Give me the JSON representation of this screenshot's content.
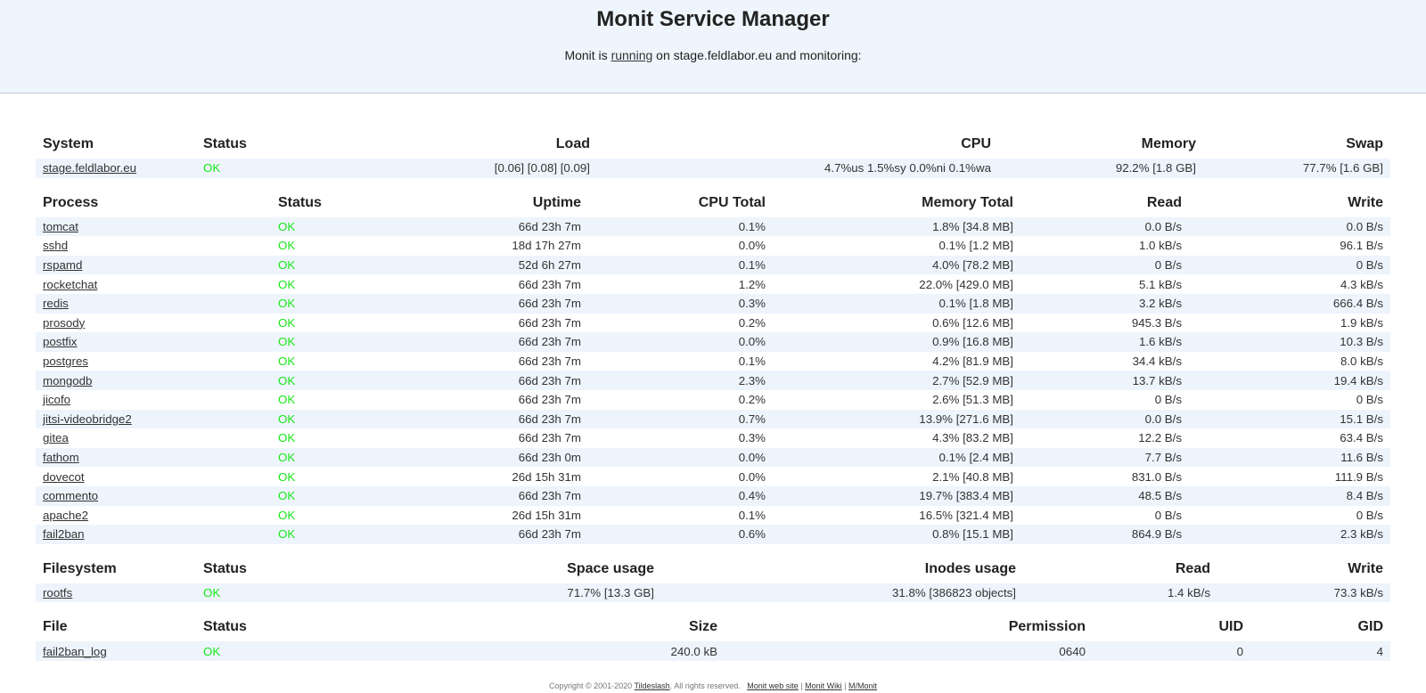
{
  "header": {
    "title": "Monit Service Manager",
    "subtitle_prefix": "Monit is",
    "running_link": "running",
    "subtitle_suffix": "on stage.feldlabor.eu and monitoring:"
  },
  "system": {
    "headers": [
      "System",
      "Status",
      "Load",
      "CPU",
      "Memory",
      "Swap"
    ],
    "rows": [
      {
        "name": "stage.feldlabor.eu",
        "status": "OK",
        "load": "[0.06] [0.08] [0.09]",
        "cpu": "4.7%us 1.5%sy 0.0%ni 0.1%wa",
        "memory": "92.2% [1.8 GB]",
        "swap": "77.7% [1.6 GB]"
      }
    ]
  },
  "process": {
    "headers": [
      "Process",
      "Status",
      "Uptime",
      "CPU Total",
      "Memory Total",
      "Read",
      "Write"
    ],
    "rows": [
      {
        "name": "tomcat",
        "status": "OK",
        "uptime": "66d 23h 7m",
        "cpu": "0.1%",
        "memory": "1.8% [34.8 MB]",
        "read": "0.0 B/s",
        "write": "0.0 B/s"
      },
      {
        "name": "sshd",
        "status": "OK",
        "uptime": "18d 17h 27m",
        "cpu": "0.0%",
        "memory": "0.1% [1.2 MB]",
        "read": "1.0 kB/s",
        "write": "96.1 B/s"
      },
      {
        "name": "rspamd",
        "status": "OK",
        "uptime": "52d 6h 27m",
        "cpu": "0.1%",
        "memory": "4.0% [78.2 MB]",
        "read": "0 B/s",
        "write": "0 B/s"
      },
      {
        "name": "rocketchat",
        "status": "OK",
        "uptime": "66d 23h 7m",
        "cpu": "1.2%",
        "memory": "22.0% [429.0 MB]",
        "read": "5.1 kB/s",
        "write": "4.3 kB/s"
      },
      {
        "name": "redis",
        "status": "OK",
        "uptime": "66d 23h 7m",
        "cpu": "0.3%",
        "memory": "0.1% [1.8 MB]",
        "read": "3.2 kB/s",
        "write": "666.4 B/s"
      },
      {
        "name": "prosody",
        "status": "OK",
        "uptime": "66d 23h 7m",
        "cpu": "0.2%",
        "memory": "0.6% [12.6 MB]",
        "read": "945.3 B/s",
        "write": "1.9 kB/s"
      },
      {
        "name": "postfix",
        "status": "OK",
        "uptime": "66d 23h 7m",
        "cpu": "0.0%",
        "memory": "0.9% [16.8 MB]",
        "read": "1.6 kB/s",
        "write": "10.3 B/s"
      },
      {
        "name": "postgres",
        "status": "OK",
        "uptime": "66d 23h 7m",
        "cpu": "0.1%",
        "memory": "4.2% [81.9 MB]",
        "read": "34.4 kB/s",
        "write": "8.0 kB/s"
      },
      {
        "name": "mongodb",
        "status": "OK",
        "uptime": "66d 23h 7m",
        "cpu": "2.3%",
        "memory": "2.7% [52.9 MB]",
        "read": "13.7 kB/s",
        "write": "19.4 kB/s"
      },
      {
        "name": "jicofo",
        "status": "OK",
        "uptime": "66d 23h 7m",
        "cpu": "0.2%",
        "memory": "2.6% [51.3 MB]",
        "read": "0 B/s",
        "write": "0 B/s"
      },
      {
        "name": "jitsi-videobridge2",
        "status": "OK",
        "uptime": "66d 23h 7m",
        "cpu": "0.7%",
        "memory": "13.9% [271.6 MB]",
        "read": "0.0 B/s",
        "write": "15.1 B/s"
      },
      {
        "name": "gitea",
        "status": "OK",
        "uptime": "66d 23h 7m",
        "cpu": "0.3%",
        "memory": "4.3% [83.2 MB]",
        "read": "12.2 B/s",
        "write": "63.4 B/s"
      },
      {
        "name": "fathom",
        "status": "OK",
        "uptime": "66d 23h 0m",
        "cpu": "0.0%",
        "memory": "0.1% [2.4 MB]",
        "read": "7.7 B/s",
        "write": "11.6 B/s"
      },
      {
        "name": "dovecot",
        "status": "OK",
        "uptime": "26d 15h 31m",
        "cpu": "0.0%",
        "memory": "2.1% [40.8 MB]",
        "read": "831.0 B/s",
        "write": "111.9 B/s"
      },
      {
        "name": "commento",
        "status": "OK",
        "uptime": "66d 23h 7m",
        "cpu": "0.4%",
        "memory": "19.7% [383.4 MB]",
        "read": "48.5 B/s",
        "write": "8.4 B/s"
      },
      {
        "name": "apache2",
        "status": "OK",
        "uptime": "26d 15h 31m",
        "cpu": "0.1%",
        "memory": "16.5% [321.4 MB]",
        "read": "0 B/s",
        "write": "0 B/s"
      },
      {
        "name": "fail2ban",
        "status": "OK",
        "uptime": "66d 23h 7m",
        "cpu": "0.6%",
        "memory": "0.8% [15.1 MB]",
        "read": "864.9 B/s",
        "write": "2.3 kB/s"
      }
    ]
  },
  "filesystem": {
    "headers": [
      "Filesystem",
      "Status",
      "Space usage",
      "Inodes usage",
      "Read",
      "Write"
    ],
    "rows": [
      {
        "name": "rootfs",
        "status": "OK",
        "space": "71.7% [13.3 GB]",
        "inodes": "31.8% [386823 objects]",
        "read": "1.4 kB/s",
        "write": "73.3 kB/s"
      }
    ]
  },
  "file": {
    "headers": [
      "File",
      "Status",
      "Size",
      "Permission",
      "UID",
      "GID"
    ],
    "rows": [
      {
        "name": "fail2ban_log",
        "status": "OK",
        "size": "240.0 kB",
        "permission": "0640",
        "uid": "0",
        "gid": "4"
      }
    ]
  },
  "footer": {
    "copyright": "Copyright © 2001-2020",
    "company_link": "Tildeslash",
    "rights": ". All rights reserved.",
    "link_website": "Monit web site",
    "link_wiki": "Monit Wiki",
    "link_mmonit": "M/Monit",
    "separator": "|"
  },
  "colors": {
    "ok": "#19e719",
    "header_bg": "#eef5fc",
    "stripe": "#edf4fc"
  }
}
